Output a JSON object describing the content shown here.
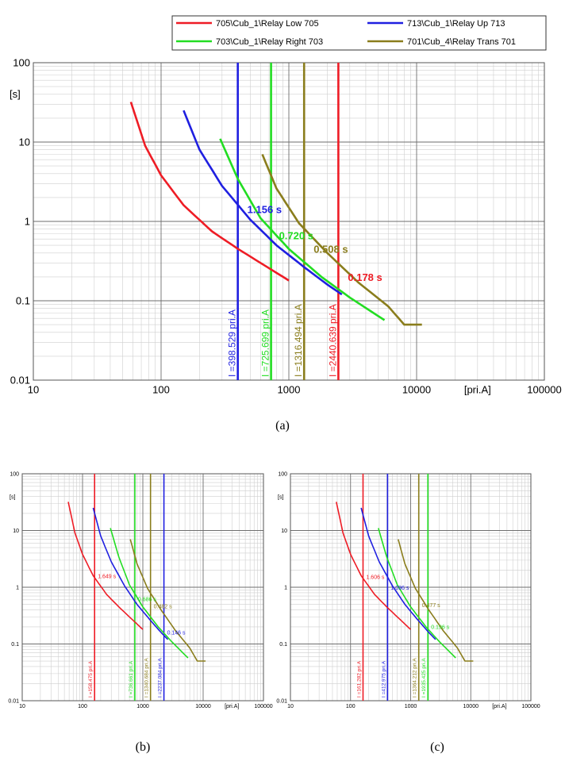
{
  "captions": {
    "a": "(a)",
    "b": "(b)",
    "c": "(c)"
  },
  "colors": {
    "red": "#ee1c25",
    "blue": "#1f1fe0",
    "green": "#22dd22",
    "olive": "#8a7d1c"
  },
  "chart_data": [
    {
      "type": "line",
      "panel": "(a)",
      "x_scale": "log",
      "y_scale": "log",
      "xlim": [
        10,
        100000
      ],
      "ylim": [
        0.01,
        100
      ],
      "xlabel": "[pri.A]",
      "ylabel": "[s]",
      "x_ticks": [
        "10",
        "100",
        "1000",
        "10000",
        "100000"
      ],
      "y_ticks": [
        "0.01",
        "0.1",
        "1",
        "10",
        "100"
      ],
      "grid": true,
      "legend_position": "top-right",
      "series": [
        {
          "name": "705\\Cub_1\\Relay Low 705",
          "color": "red",
          "x": [
            58,
            75,
            100,
            150,
            250,
            400,
            600,
            1000
          ],
          "y": [
            32,
            9,
            3.8,
            1.6,
            0.75,
            0.45,
            0.3,
            0.18
          ]
        },
        {
          "name": "713\\Cub_1\\Relay Up 713",
          "color": "blue",
          "x": [
            150,
            200,
            300,
            500,
            800,
            1300,
            2000,
            2600
          ],
          "y": [
            25,
            8,
            2.8,
            1.05,
            0.5,
            0.27,
            0.16,
            0.12
          ]
        },
        {
          "name": "703\\Cub_1\\Relay Right 703",
          "color": "green",
          "x": [
            290,
            400,
            600,
            1000,
            1800,
            3000,
            5600
          ],
          "y": [
            11,
            3.4,
            1.1,
            0.45,
            0.2,
            0.11,
            0.057
          ]
        },
        {
          "name": "701\\Cub_4\\Relay Trans 701",
          "color": "olive",
          "x": [
            620,
            800,
            1200,
            2000,
            3500,
            6000,
            8000,
            11000
          ],
          "y": [
            7,
            2.6,
            0.95,
            0.4,
            0.17,
            0.085,
            0.05,
            0.05
          ]
        }
      ],
      "vlines": [
        {
          "x": 398.529,
          "color": "blue",
          "label": "I =398.529 pri.A"
        },
        {
          "x": 725.699,
          "color": "green",
          "label": "I =725.699 pri.A"
        },
        {
          "x": 1316.494,
          "color": "olive",
          "label": "I =1316.494 pri.A"
        },
        {
          "x": 2440.639,
          "color": "red",
          "label": "I =2440.639 pri.A"
        }
      ],
      "annotations": [
        {
          "text": "1.156 s",
          "x": 398.529,
          "y": 1.156,
          "color": "blue"
        },
        {
          "text": "0.720 s",
          "x": 725.699,
          "y": 0.72,
          "color": "green"
        },
        {
          "text": "0.508 s",
          "x": 1316.494,
          "y": 0.508,
          "color": "olive"
        },
        {
          "text": "0.178 s",
          "x": 2440.639,
          "y": 0.178,
          "color": "red"
        }
      ]
    },
    {
      "type": "line",
      "panel": "(b)",
      "x_scale": "log",
      "y_scale": "log",
      "xlim": [
        10,
        100000
      ],
      "ylim": [
        0.01,
        100
      ],
      "xlabel": "[pri.A]",
      "ylabel": "[s]",
      "x_ticks": [
        "10",
        "100",
        "1000",
        "10000",
        "100000"
      ],
      "y_ticks": [
        "0.01",
        "0.1",
        "1",
        "10",
        "100"
      ],
      "grid": true,
      "series": [
        {
          "color": "red",
          "x": [
            58,
            75,
            100,
            150,
            250,
            400,
            600,
            1000
          ],
          "y": [
            32,
            9,
            3.8,
            1.6,
            0.75,
            0.45,
            0.3,
            0.18
          ]
        },
        {
          "color": "blue",
          "x": [
            150,
            200,
            300,
            500,
            800,
            1300,
            2000,
            2600
          ],
          "y": [
            25,
            8,
            2.8,
            1.05,
            0.5,
            0.27,
            0.16,
            0.12
          ]
        },
        {
          "color": "green",
          "x": [
            290,
            400,
            600,
            1000,
            1800,
            3000,
            5600
          ],
          "y": [
            11,
            3.4,
            1.1,
            0.45,
            0.2,
            0.11,
            0.057
          ]
        },
        {
          "color": "olive",
          "x": [
            620,
            800,
            1200,
            2000,
            3500,
            6000,
            8000,
            11000
          ],
          "y": [
            7,
            2.6,
            0.95,
            0.4,
            0.17,
            0.085,
            0.05,
            0.05
          ]
        }
      ],
      "vlines": [
        {
          "x": 158.475,
          "color": "red",
          "label": "I =158.475 pri.A"
        },
        {
          "x": 736.661,
          "color": "green",
          "label": "I =736.661 pri.A"
        },
        {
          "x": 1340.684,
          "color": "olive",
          "label": "I =1340.684 pri.A"
        },
        {
          "x": 2237.084,
          "color": "blue",
          "label": "I =2237.084 pri.A"
        }
      ],
      "annotations": [
        {
          "text": "1.649 s",
          "x": 158.475,
          "y": 1.649,
          "color": "red"
        },
        {
          "text": "0.686 s",
          "x": 736.661,
          "y": 0.686,
          "color": "green"
        },
        {
          "text": "0.482 s",
          "x": 1340.684,
          "y": 0.482,
          "color": "olive"
        },
        {
          "text": "0.146 s",
          "x": 2237.084,
          "y": 0.146,
          "color": "blue"
        }
      ]
    },
    {
      "type": "line",
      "panel": "(c)",
      "x_scale": "log",
      "y_scale": "log",
      "xlim": [
        10,
        100000
      ],
      "ylim": [
        0.01,
        100
      ],
      "xlabel": "[pri.A]",
      "ylabel": "[s]",
      "x_ticks": [
        "10",
        "100",
        "1000",
        "10000",
        "100000"
      ],
      "y_ticks": [
        "0.01",
        "0.1",
        "1",
        "10",
        "100"
      ],
      "grid": true,
      "series": [
        {
          "color": "red",
          "x": [
            58,
            75,
            100,
            150,
            250,
            400,
            600,
            1000
          ],
          "y": [
            32,
            9,
            3.8,
            1.6,
            0.75,
            0.45,
            0.3,
            0.18
          ]
        },
        {
          "color": "blue",
          "x": [
            150,
            200,
            300,
            500,
            800,
            1300,
            2000,
            2600
          ],
          "y": [
            25,
            8,
            2.8,
            1.05,
            0.5,
            0.27,
            0.16,
            0.12
          ]
        },
        {
          "color": "green",
          "x": [
            290,
            400,
            600,
            1000,
            1800,
            3000,
            5600
          ],
          "y": [
            11,
            3.4,
            1.1,
            0.45,
            0.2,
            0.11,
            0.057
          ]
        },
        {
          "color": "olive",
          "x": [
            620,
            800,
            1200,
            2000,
            3500,
            6000,
            8000,
            11000
          ],
          "y": [
            7,
            2.6,
            0.95,
            0.4,
            0.17,
            0.085,
            0.05,
            0.05
          ]
        }
      ],
      "vlines": [
        {
          "x": 161.282,
          "color": "red",
          "label": "I =161.282 pri.A"
        },
        {
          "x": 412.975,
          "color": "blue",
          "label": "I =412.975 pri.A"
        },
        {
          "x": 1364.212,
          "color": "olive",
          "label": "I =1364.212 pri.A"
        },
        {
          "x": 1935.425,
          "color": "green",
          "label": "I =1935.425 pri.A"
        }
      ],
      "annotations": [
        {
          "text": "1.606 s",
          "x": 161.282,
          "y": 1.606,
          "color": "red"
        },
        {
          "text": "1.096 s",
          "x": 412.975,
          "y": 1.096,
          "color": "blue"
        },
        {
          "text": "0.477 s",
          "x": 1364.212,
          "y": 0.477,
          "color": "olive"
        },
        {
          "text": "0.196 s",
          "x": 1935.425,
          "y": 0.196,
          "color": "green"
        }
      ]
    }
  ]
}
